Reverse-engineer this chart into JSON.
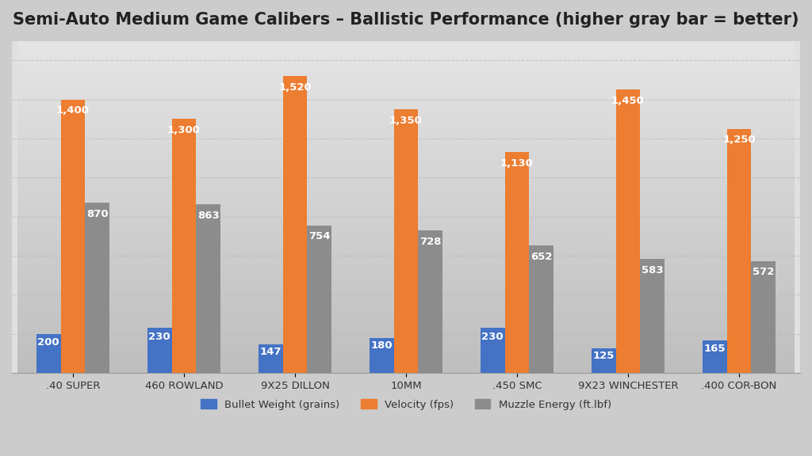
{
  "title": "Semi-Auto Medium Game Calibers – Ballistic Performance (higher gray bar = better)",
  "categories": [
    ".40 SUPER",
    "460 ROWLAND",
    "9X25 DILLON",
    "10MM",
    ".450 SMC",
    "9X23 WINCHESTER",
    ".400 COR-BON"
  ],
  "bullet_weight": [
    200,
    230,
    147,
    180,
    230,
    125,
    165
  ],
  "velocity": [
    1400,
    1300,
    1520,
    1350,
    1130,
    1450,
    1250
  ],
  "muzzle_energy": [
    870,
    863,
    754,
    728,
    652,
    583,
    572
  ],
  "bar_colors": {
    "bullet_weight": "#4472C4",
    "velocity": "#ED7D31",
    "muzzle_energy": "#8C8C8C"
  },
  "legend_labels": [
    "Bullet Weight (grains)",
    "Velocity (fps)",
    "Muzzle Energy (ft.lbf)"
  ],
  "background_top": "#C8C8C8",
  "background_bottom": "#F0F0F0",
  "plot_bg_top": "#D8D8D8",
  "plot_bg_bottom": "#F5F5F5",
  "title_fontsize": 15,
  "label_fontsize": 9.5,
  "tick_fontsize": 9.5,
  "ylim": [
    0,
    1700
  ],
  "bar_width": 0.22,
  "grid_color": "#BBBBBB",
  "grid_linewidth": 0.8,
  "grid_linestyle": "--"
}
